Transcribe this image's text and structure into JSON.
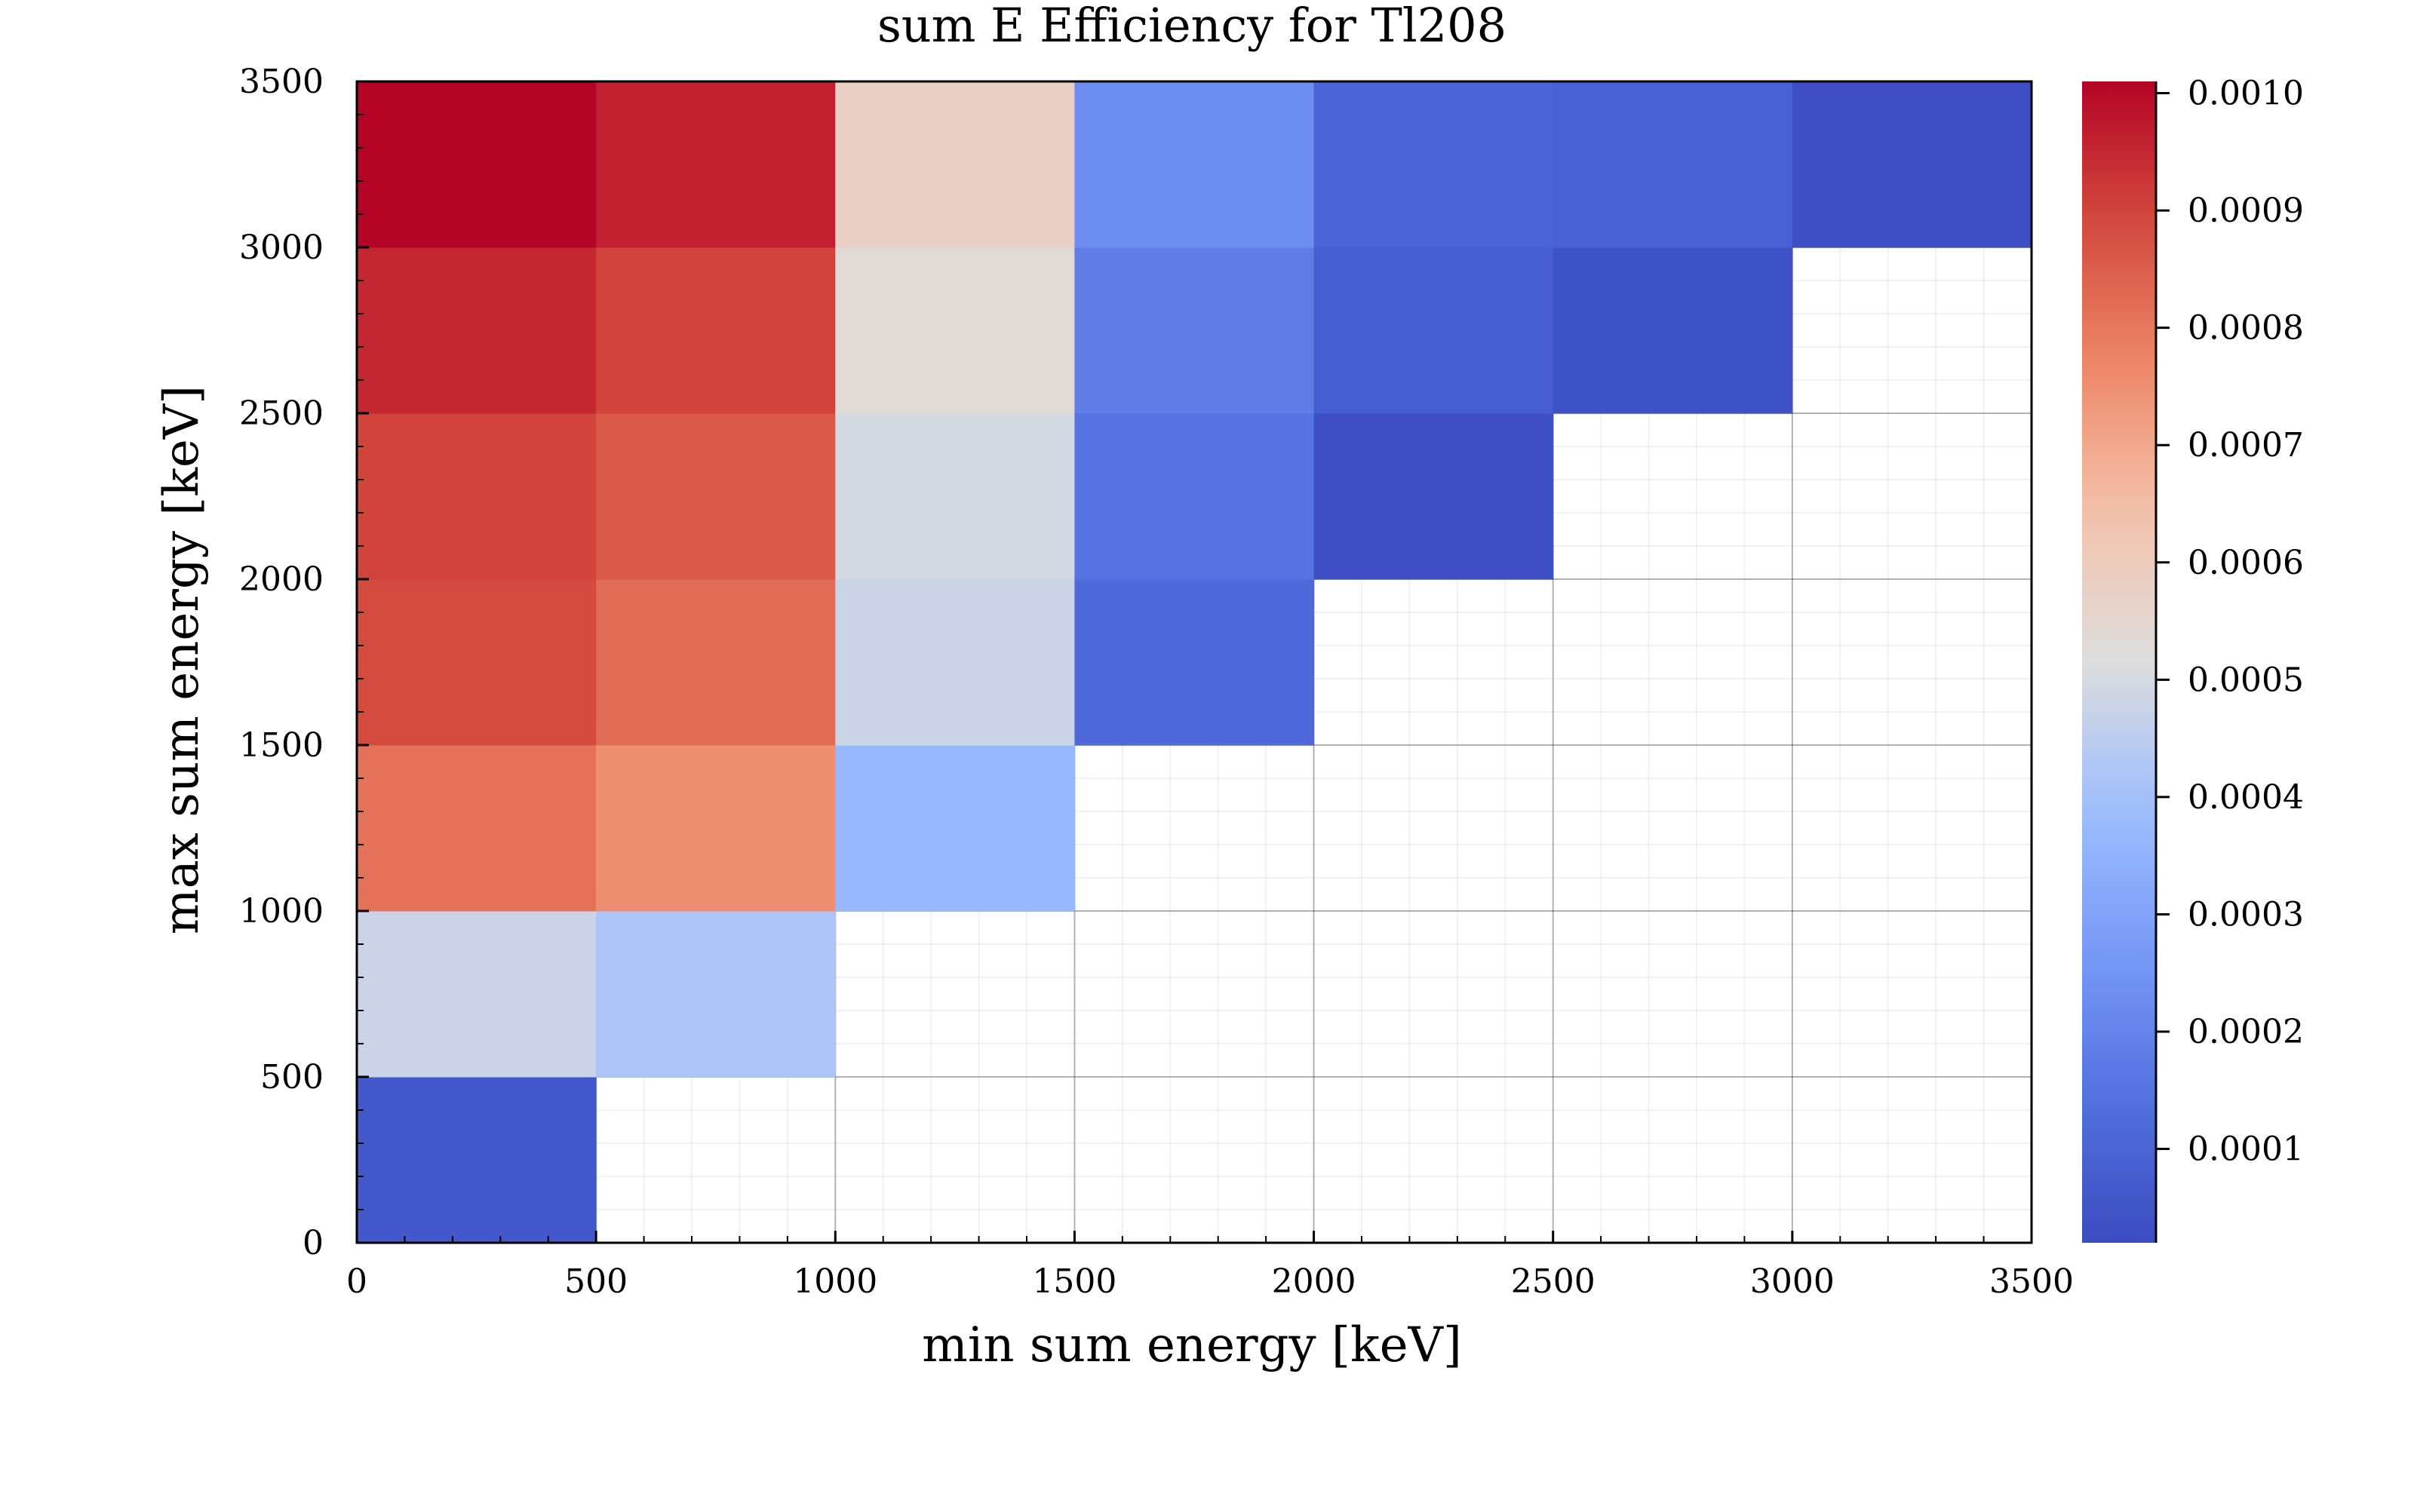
{
  "chart_data": {
    "type": "heatmap",
    "title": "sum E Efficiency for Tl208",
    "xlabel": "min sum energy [keV]",
    "ylabel": "max sum energy [keV]",
    "xlim": [
      0,
      3500
    ],
    "ylim": [
      0,
      3500
    ],
    "x_ticks": [
      "0",
      "500",
      "1000",
      "1500",
      "2000",
      "2500",
      "3000",
      "3500"
    ],
    "y_ticks": [
      "0",
      "500",
      "1000",
      "1500",
      "2000",
      "2500",
      "3000",
      "3500"
    ],
    "x_bin_edges": [
      0,
      500,
      1000,
      1500,
      2000,
      2500,
      3000,
      3500
    ],
    "y_bin_edges": [
      0,
      500,
      1000,
      1500,
      2000,
      2500,
      3000,
      3500
    ],
    "colormap": "coolwarm",
    "color_range": [
      2e-05,
      0.00101
    ],
    "colorbar_ticks": [
      "0.0001",
      "0.0002",
      "0.0003",
      "0.0004",
      "0.0005",
      "0.0006",
      "0.0007",
      "0.0008",
      "0.0009",
      "0.0010"
    ],
    "colorbar_tick_values": [
      0.0001,
      0.0002,
      0.0003,
      0.0004,
      0.0005,
      0.0006,
      0.0007,
      0.0008,
      0.0009,
      0.001
    ],
    "grid": true,
    "values": [
      [
        6e-05,
        null,
        null,
        null,
        null,
        null,
        null
      ],
      [
        0.00048,
        0.00042,
        null,
        null,
        null,
        null,
        null
      ],
      [
        0.00081,
        0.00075,
        0.00037,
        null,
        null,
        null,
        null
      ],
      [
        0.00089,
        0.00082,
        0.00048,
        0.00012,
        null,
        null,
        null
      ],
      [
        0.0009,
        0.00086,
        0.0005,
        0.00015,
        3e-05,
        null,
        null
      ],
      [
        0.00095,
        0.0009,
        0.00053,
        0.00018,
        8e-05,
        4e-05,
        null
      ],
      [
        0.00101,
        0.00096,
        0.00058,
        0.00023,
        0.0001,
        9e-05,
        3e-05
      ]
    ]
  }
}
